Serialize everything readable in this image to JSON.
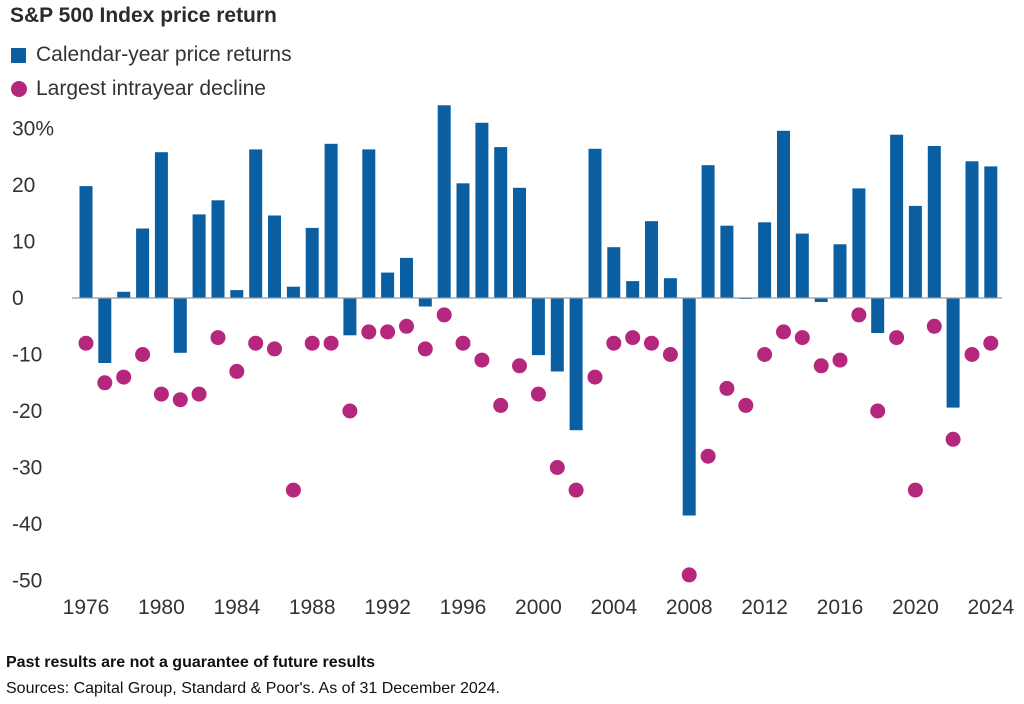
{
  "chart_data": {
    "type": "bar",
    "title": "S&P 500 Index price return",
    "xlabel": "",
    "ylabel": "",
    "ylim": [
      -50,
      35
    ],
    "y_ticks": [
      "30%",
      "20",
      "10",
      "0",
      "-10",
      "-20",
      "-30",
      "-40",
      "-50"
    ],
    "y_tick_values": [
      30,
      20,
      10,
      0,
      -10,
      -20,
      -30,
      -40,
      -50
    ],
    "x_tick_labels": [
      "1976",
      "1980",
      "1984",
      "1988",
      "1992",
      "1996",
      "2000",
      "2004",
      "2008",
      "2012",
      "2016",
      "2020",
      "2024"
    ],
    "x": [
      1976,
      1977,
      1978,
      1979,
      1980,
      1981,
      1982,
      1983,
      1984,
      1985,
      1986,
      1987,
      1988,
      1989,
      1990,
      1991,
      1992,
      1993,
      1994,
      1995,
      1996,
      1997,
      1998,
      1999,
      2000,
      2001,
      2002,
      2003,
      2004,
      2005,
      2006,
      2007,
      2008,
      2009,
      2010,
      2011,
      2012,
      2013,
      2014,
      2015,
      2016,
      2017,
      2018,
      2019,
      2020,
      2021,
      2022,
      2023,
      2024
    ],
    "legend_position": "top-left",
    "grid": false,
    "series": [
      {
        "name": "Calendar-year price returns",
        "kind": "bar",
        "color": "#0a5fa3",
        "values": [
          19.8,
          -11.5,
          1.1,
          12.3,
          25.8,
          -9.7,
          14.8,
          17.3,
          1.4,
          26.3,
          14.6,
          2.0,
          12.4,
          27.3,
          -6.6,
          26.3,
          4.5,
          7.1,
          -1.5,
          34.1,
          20.3,
          31.0,
          26.7,
          19.5,
          -10.1,
          -13.0,
          -23.4,
          26.4,
          9.0,
          3.0,
          13.6,
          3.5,
          -38.5,
          23.5,
          12.8,
          0.0,
          13.4,
          29.6,
          11.4,
          -0.7,
          9.5,
          19.4,
          -6.2,
          28.9,
          16.3,
          26.9,
          -19.4,
          24.2,
          23.3
        ]
      },
      {
        "name": "Largest intrayear decline",
        "kind": "dot",
        "color": "#b5277d",
        "values": [
          -8,
          -15,
          -14,
          -10,
          -17,
          -18,
          -17,
          -7,
          -13,
          -8,
          -9,
          -34,
          -8,
          -8,
          -20,
          -6,
          -6,
          -5,
          -9,
          -3,
          -8,
          -11,
          -19,
          -12,
          -17,
          -30,
          -34,
          -14,
          -8,
          -7,
          -8,
          -10,
          -49,
          -28,
          -16,
          -19,
          -10,
          -6,
          -7,
          -12,
          -11,
          -3,
          -20,
          -7,
          -34,
          -5,
          -25,
          -10,
          -8
        ]
      }
    ]
  },
  "footnote": "Past results are not a guarantee of future results",
  "sources": "Sources: Capital Group, Standard & Poor's. As of 31 December 2024."
}
